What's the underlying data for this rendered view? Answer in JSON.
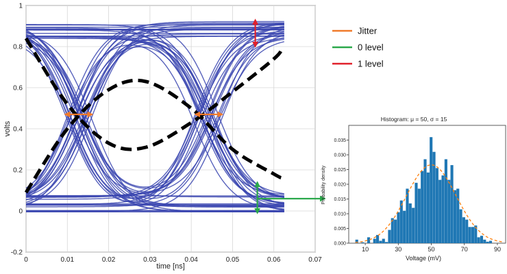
{
  "chart_data": [
    {
      "type": "line",
      "title": "",
      "xlabel": "time [ns]",
      "ylabel": "volts",
      "xlim": [
        0,
        0.07
      ],
      "ylim": [
        -0.2,
        1
      ],
      "xticks": [
        "0",
        "0.01",
        "0.02",
        "0.03",
        "0.04",
        "0.05",
        "0.06",
        "0.07"
      ],
      "yticks": [
        "-0.2",
        "0",
        "0.2",
        "0.4",
        "0.6",
        "0.8",
        "1"
      ],
      "grid": true,
      "eye_diagram": {
        "color": "#3b46b0",
        "one_level_band": [
          0.84,
          0.93
        ],
        "zero_level_band": [
          -0.01,
          0.08
        ],
        "crossing_level": 0.47,
        "crossings_ns": [
          0.013,
          0.044
        ],
        "bit_period_ns": 0.031
      },
      "highlight_series": {
        "name": "dashed trace",
        "style": "black dashed",
        "x": [
          0,
          0.01,
          0.02,
          0.029,
          0.04,
          0.05,
          0.06,
          0.062
        ],
        "y": [
          0.84,
          0.52,
          0.33,
          0.31,
          0.43,
          0.58,
          0.74,
          0.79
        ]
      },
      "highlight_series_2": {
        "name": "dashed trace 2",
        "style": "black dashed",
        "x": [
          0,
          0.01,
          0.02,
          0.029,
          0.04,
          0.05,
          0.06,
          0.062
        ],
        "y": [
          0.09,
          0.4,
          0.59,
          0.63,
          0.5,
          0.3,
          0.18,
          0.16
        ]
      },
      "annotations": [
        {
          "name": "Jitter",
          "color": "#f07a2a",
          "from": [
            0.0095,
            0.47
          ],
          "to": [
            0.016,
            0.47
          ]
        },
        {
          "name": "Jitter",
          "color": "#f07a2a",
          "from": [
            0.041,
            0.47
          ],
          "to": [
            0.0475,
            0.47
          ]
        },
        {
          "name": "1 level",
          "color": "#e0202a",
          "from": [
            0.0555,
            0.93
          ],
          "to": [
            0.0555,
            0.8
          ]
        },
        {
          "name": "0 level",
          "color": "#2aa84a",
          "from": [
            0.056,
            0.14
          ],
          "to": [
            0.056,
            -0.01
          ]
        }
      ],
      "legend": [
        {
          "label": "Jitter",
          "color": "#f07a2a"
        },
        {
          "label": "0 level",
          "color": "#2aa84a"
        },
        {
          "label": "1 level",
          "color": "#e0202a"
        }
      ]
    },
    {
      "type": "bar",
      "title": "Histogram: μ = 50, σ = 15",
      "xlabel": "Voltage (mV)",
      "ylabel": "Probability density",
      "xlim": [
        0,
        95
      ],
      "ylim": [
        0,
        0.04
      ],
      "xticks": [
        10,
        30,
        50,
        70,
        90
      ],
      "yticks": [
        "0.000",
        "0.005",
        "0.010",
        "0.015",
        "0.020",
        "0.025",
        "0.030",
        "0.035"
      ],
      "bar_color": "#1f77b4",
      "bin_start": 4,
      "bin_width": 1.8,
      "values": [
        0.0012,
        0,
        0.0003,
        0,
        0.002,
        0,
        0.0015,
        0.0028,
        0.0008,
        0.0015,
        0.0004,
        0.0045,
        0.0085,
        0.008,
        0.0105,
        0.0145,
        0.011,
        0.0185,
        0.0135,
        0.012,
        0.0205,
        0.0185,
        0.0245,
        0.0285,
        0.024,
        0.036,
        0.031,
        0.0255,
        0.0215,
        0.023,
        0.0285,
        0.0215,
        0.0265,
        0.018,
        0.0185,
        0.0115,
        0.0088,
        0.008,
        0.0055,
        0.0055,
        0.006,
        0.002,
        0.0025,
        0.0012,
        0.0005,
        0.0008
      ],
      "fit": {
        "type": "normal pdf",
        "mu": 50,
        "sigma": 15,
        "style": "orange dashed",
        "color": "#ff7f0e"
      }
    }
  ]
}
